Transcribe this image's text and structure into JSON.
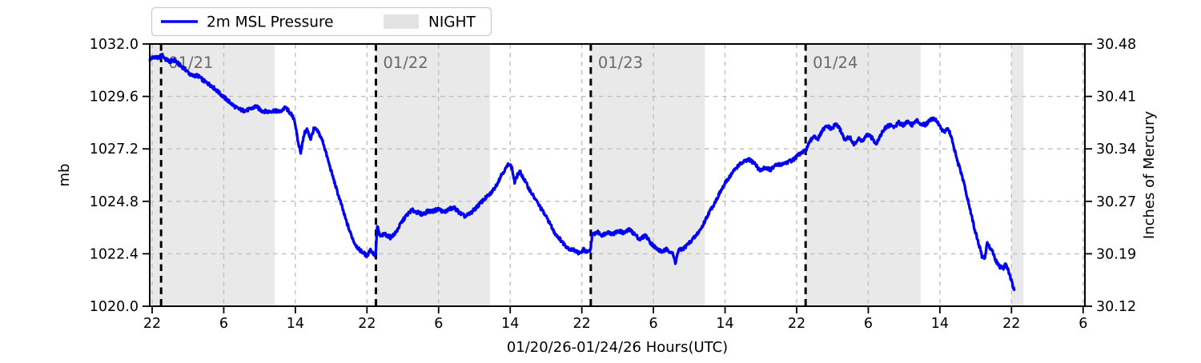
{
  "legend": {
    "series_label": "2m MSL Pressure",
    "night_label": "NIGHT"
  },
  "axes": {
    "left_label": "mb",
    "right_label": "Inches of Mercury",
    "x_label": "01/20/26-01/24/26  Hours(UTC)"
  },
  "colors": {
    "line": "#0101ef",
    "night_fill": "#e9e9e9",
    "grid": "#bfbfbf",
    "day_line": "#000000",
    "day_label": "#696969",
    "frame": "#000000",
    "legend_border": "#cccccc",
    "legend_patch": "#e3e3e3"
  },
  "chart_data": {
    "type": "line",
    "title": "",
    "xlabel": "01/20/26-01/24/26  Hours(UTC)",
    "ylabel_left": "mb",
    "ylabel_right": "Inches of Mercury",
    "x_unit": "hours since 01/20/26 00:00 UTC",
    "xlim": [
      21.73,
      126.2
    ],
    "ylim_left_mb": [
      1020.0,
      1032.0
    ],
    "ylim_right_inhg": [
      30.12,
      30.48
    ],
    "grid": true,
    "legend_position": "above-left",
    "x_tick_hours": [
      22,
      30,
      38,
      46,
      54,
      62,
      70,
      78,
      86,
      94,
      102,
      110,
      118,
      126
    ],
    "x_tick_labels": [
      "22",
      "6",
      "14",
      "22",
      "6",
      "14",
      "22",
      "6",
      "14",
      "22",
      "6",
      "14",
      "22",
      "6"
    ],
    "left_tick_values_mb": [
      1020.0,
      1022.4,
      1024.8,
      1027.2,
      1029.6,
      1032.0
    ],
    "left_tick_labels": [
      "1020.0",
      "1022.4",
      "1024.8",
      "1027.2",
      "1029.6",
      "1032.0"
    ],
    "right_tick_labels": [
      "30.12",
      "30.19",
      "30.27",
      "30.34",
      "30.41",
      "30.48"
    ],
    "day_markers": [
      {
        "hour": 23,
        "label": "01/21"
      },
      {
        "hour": 47,
        "label": "01/22"
      },
      {
        "hour": 71,
        "label": "01/23"
      },
      {
        "hour": 95,
        "label": "01/24"
      }
    ],
    "night_spans_hours": [
      [
        21.73,
        35.7
      ],
      [
        47.0,
        59.75
      ],
      [
        71.0,
        83.75
      ],
      [
        95.0,
        107.85
      ],
      [
        118.0,
        119.35
      ]
    ],
    "series": [
      {
        "name": "2m MSL Pressure",
        "color": "#0101ef",
        "points_hour_mb": [
          [
            21.75,
            1031.3
          ],
          [
            22.2,
            1031.42
          ],
          [
            22.7,
            1031.35
          ],
          [
            23.1,
            1031.5
          ],
          [
            23.5,
            1031.3
          ],
          [
            24.0,
            1031.2
          ],
          [
            24.5,
            1031.25
          ],
          [
            25.2,
            1031.0
          ],
          [
            25.8,
            1030.8
          ],
          [
            26.4,
            1030.55
          ],
          [
            27.1,
            1030.55
          ],
          [
            27.8,
            1030.3
          ],
          [
            28.6,
            1030.1
          ],
          [
            29.4,
            1029.8
          ],
          [
            30.2,
            1029.5
          ],
          [
            30.9,
            1029.25
          ],
          [
            31.5,
            1029.05
          ],
          [
            32.2,
            1028.95
          ],
          [
            32.9,
            1029.0
          ],
          [
            33.6,
            1029.15
          ],
          [
            34.2,
            1028.95
          ],
          [
            34.9,
            1028.9
          ],
          [
            35.6,
            1028.95
          ],
          [
            36.3,
            1028.9
          ],
          [
            36.9,
            1029.1
          ],
          [
            37.4,
            1028.85
          ],
          [
            37.9,
            1028.55
          ],
          [
            38.3,
            1027.5
          ],
          [
            38.6,
            1027.05
          ],
          [
            39.0,
            1027.9
          ],
          [
            39.3,
            1028.1
          ],
          [
            39.7,
            1027.65
          ],
          [
            40.1,
            1028.15
          ],
          [
            40.6,
            1027.95
          ],
          [
            41.1,
            1027.5
          ],
          [
            41.6,
            1026.75
          ],
          [
            42.1,
            1026.05
          ],
          [
            42.6,
            1025.35
          ],
          [
            43.1,
            1024.7
          ],
          [
            43.6,
            1024.0
          ],
          [
            44.1,
            1023.4
          ],
          [
            44.6,
            1022.9
          ],
          [
            45.1,
            1022.6
          ],
          [
            45.6,
            1022.45
          ],
          [
            46.0,
            1022.3
          ],
          [
            46.35,
            1022.6
          ],
          [
            46.65,
            1022.45
          ],
          [
            46.95,
            1022.3
          ],
          [
            47.15,
            1023.65
          ],
          [
            47.45,
            1023.2
          ],
          [
            48.0,
            1023.3
          ],
          [
            48.6,
            1023.15
          ],
          [
            49.2,
            1023.35
          ],
          [
            49.8,
            1023.8
          ],
          [
            50.4,
            1024.15
          ],
          [
            51.0,
            1024.4
          ],
          [
            51.6,
            1024.3
          ],
          [
            52.2,
            1024.2
          ],
          [
            52.8,
            1024.35
          ],
          [
            53.4,
            1024.35
          ],
          [
            54.0,
            1024.45
          ],
          [
            54.6,
            1024.3
          ],
          [
            55.2,
            1024.45
          ],
          [
            55.8,
            1024.5
          ],
          [
            56.4,
            1024.25
          ],
          [
            57.0,
            1024.1
          ],
          [
            57.7,
            1024.3
          ],
          [
            58.4,
            1024.6
          ],
          [
            59.1,
            1024.9
          ],
          [
            59.8,
            1025.15
          ],
          [
            60.4,
            1025.5
          ],
          [
            61.0,
            1026.0
          ],
          [
            61.5,
            1026.3
          ],
          [
            61.9,
            1026.55
          ],
          [
            62.2,
            1026.3
          ],
          [
            62.5,
            1025.65
          ],
          [
            62.8,
            1026.0
          ],
          [
            63.1,
            1026.15
          ],
          [
            63.5,
            1025.85
          ],
          [
            64.0,
            1025.45
          ],
          [
            64.5,
            1025.1
          ],
          [
            65.1,
            1024.7
          ],
          [
            65.7,
            1024.3
          ],
          [
            66.3,
            1023.9
          ],
          [
            66.9,
            1023.4
          ],
          [
            67.5,
            1023.1
          ],
          [
            68.1,
            1022.8
          ],
          [
            68.7,
            1022.6
          ],
          [
            69.3,
            1022.55
          ],
          [
            69.8,
            1022.4
          ],
          [
            70.2,
            1022.6
          ],
          [
            70.6,
            1022.45
          ],
          [
            70.95,
            1022.55
          ],
          [
            71.15,
            1023.25
          ],
          [
            71.7,
            1023.4
          ],
          [
            72.3,
            1023.25
          ],
          [
            72.9,
            1023.4
          ],
          [
            73.5,
            1023.3
          ],
          [
            74.1,
            1023.45
          ],
          [
            74.7,
            1023.35
          ],
          [
            75.3,
            1023.5
          ],
          [
            75.9,
            1023.3
          ],
          [
            76.5,
            1023.05
          ],
          [
            77.1,
            1023.25
          ],
          [
            77.7,
            1022.9
          ],
          [
            78.3,
            1022.65
          ],
          [
            78.9,
            1022.5
          ],
          [
            79.5,
            1022.6
          ],
          [
            80.1,
            1022.45
          ],
          [
            80.45,
            1022.0
          ],
          [
            80.8,
            1022.55
          ],
          [
            81.4,
            1022.65
          ],
          [
            82.0,
            1022.9
          ],
          [
            82.7,
            1023.2
          ],
          [
            83.4,
            1023.6
          ],
          [
            84.1,
            1024.2
          ],
          [
            84.8,
            1024.7
          ],
          [
            85.5,
            1025.25
          ],
          [
            86.2,
            1025.75
          ],
          [
            86.9,
            1026.15
          ],
          [
            87.5,
            1026.45
          ],
          [
            88.1,
            1026.6
          ],
          [
            88.7,
            1026.7
          ],
          [
            89.3,
            1026.55
          ],
          [
            89.9,
            1026.2
          ],
          [
            90.5,
            1026.35
          ],
          [
            91.1,
            1026.25
          ],
          [
            91.7,
            1026.45
          ],
          [
            92.3,
            1026.5
          ],
          [
            93.0,
            1026.6
          ],
          [
            93.6,
            1026.7
          ],
          [
            94.3,
            1026.95
          ],
          [
            94.95,
            1027.1
          ],
          [
            95.4,
            1027.45
          ],
          [
            95.9,
            1027.8
          ],
          [
            96.4,
            1027.65
          ],
          [
            96.9,
            1028.05
          ],
          [
            97.4,
            1028.25
          ],
          [
            97.9,
            1028.1
          ],
          [
            98.4,
            1028.35
          ],
          [
            98.9,
            1028.05
          ],
          [
            99.4,
            1027.6
          ],
          [
            99.9,
            1027.75
          ],
          [
            100.4,
            1027.4
          ],
          [
            100.9,
            1027.65
          ],
          [
            101.4,
            1027.55
          ],
          [
            101.9,
            1027.85
          ],
          [
            102.4,
            1027.7
          ],
          [
            102.9,
            1027.45
          ],
          [
            103.4,
            1027.85
          ],
          [
            103.9,
            1028.15
          ],
          [
            104.4,
            1028.3
          ],
          [
            104.9,
            1028.2
          ],
          [
            105.4,
            1028.4
          ],
          [
            105.9,
            1028.3
          ],
          [
            106.4,
            1028.45
          ],
          [
            106.9,
            1028.3
          ],
          [
            107.4,
            1028.5
          ],
          [
            107.9,
            1028.35
          ],
          [
            108.4,
            1028.3
          ],
          [
            108.9,
            1028.55
          ],
          [
            109.4,
            1028.6
          ],
          [
            109.8,
            1028.4
          ],
          [
            110.2,
            1028.1
          ],
          [
            110.5,
            1027.95
          ],
          [
            110.8,
            1028.15
          ],
          [
            111.1,
            1027.95
          ],
          [
            111.5,
            1027.4
          ],
          [
            111.9,
            1026.7
          ],
          [
            112.3,
            1026.2
          ],
          [
            112.7,
            1025.6
          ],
          [
            113.1,
            1024.9
          ],
          [
            113.5,
            1024.2
          ],
          [
            113.9,
            1023.5
          ],
          [
            114.3,
            1022.9
          ],
          [
            114.7,
            1022.3
          ],
          [
            115.0,
            1022.15
          ],
          [
            115.3,
            1022.9
          ],
          [
            115.6,
            1022.7
          ],
          [
            115.9,
            1022.5
          ],
          [
            116.3,
            1022.05
          ],
          [
            116.7,
            1021.8
          ],
          [
            117.1,
            1021.75
          ],
          [
            117.4,
            1021.95
          ],
          [
            117.7,
            1021.55
          ],
          [
            118.0,
            1021.15
          ],
          [
            118.2,
            1020.85
          ],
          [
            118.3,
            1020.75
          ]
        ]
      }
    ]
  }
}
